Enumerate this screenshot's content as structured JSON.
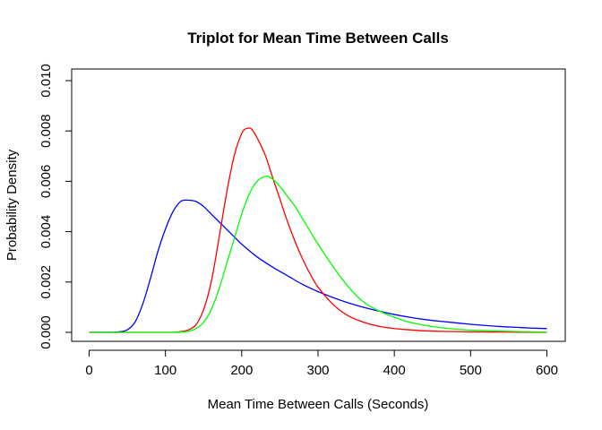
{
  "chart_data": {
    "type": "line",
    "title": "Triplot for Mean Time Between Calls",
    "xlabel": "Mean Time Between Calls (Seconds)",
    "ylabel": "Probability Density",
    "xlim": [
      0,
      600
    ],
    "ylim": [
      0,
      0.01
    ],
    "x_ticks": [
      0,
      100,
      200,
      300,
      400,
      500,
      600
    ],
    "x_tick_labels": [
      "0",
      "100",
      "200",
      "300",
      "400",
      "500",
      "600"
    ],
    "y_ticks": [
      0,
      0.002,
      0.004,
      0.006,
      0.008,
      0.01
    ],
    "y_tick_labels": [
      "0.000",
      "0.002",
      "0.004",
      "0.006",
      "0.008",
      "0.010"
    ],
    "grid": false,
    "legend": "none",
    "series": [
      {
        "color": "#0000ff",
        "x": [
          0,
          30,
          40,
          50,
          60,
          70,
          80,
          90,
          100,
          110,
          120,
          130,
          140,
          150,
          160,
          170,
          180,
          190,
          200,
          220,
          240,
          260,
          280,
          300,
          320,
          340,
          360,
          380,
          400,
          420,
          440,
          460,
          480,
          500,
          520,
          540,
          560,
          580,
          600
        ],
        "y": [
          0,
          0,
          2e-05,
          0.0001,
          0.0004,
          0.0011,
          0.0021,
          0.0032,
          0.0041,
          0.0048,
          0.0052,
          0.00525,
          0.0052,
          0.005,
          0.0047,
          0.0044,
          0.0041,
          0.0038,
          0.0035,
          0.003,
          0.0026,
          0.00225,
          0.0019,
          0.00162,
          0.00138,
          0.00117,
          0.00099,
          0.00084,
          0.00071,
          0.0006,
          0.00051,
          0.00044,
          0.00038,
          0.00032,
          0.00027,
          0.00023,
          0.0002,
          0.00017,
          0.00015
        ]
      },
      {
        "color": "#ff0000",
        "x": [
          0,
          100,
          120,
          130,
          140,
          150,
          160,
          170,
          180,
          190,
          200,
          207,
          215,
          230,
          240,
          250,
          260,
          270,
          280,
          290,
          300,
          320,
          340,
          360,
          380,
          400,
          420,
          440,
          460,
          480,
          500,
          550,
          600
        ],
        "y": [
          0,
          0,
          3e-05,
          0.0001,
          0.0003,
          0.0009,
          0.002,
          0.0037,
          0.0055,
          0.007,
          0.0079,
          0.0081,
          0.008,
          0.0071,
          0.0062,
          0.0053,
          0.0044,
          0.0036,
          0.0029,
          0.0023,
          0.0018,
          0.0011,
          0.00065,
          0.0004,
          0.00024,
          0.00015,
          0.0001,
          6e-05,
          4e-05,
          3e-05,
          2e-05,
          1e-05,
          0
        ]
      },
      {
        "color": "#00ff00",
        "x": [
          0,
          110,
          130,
          140,
          150,
          160,
          170,
          180,
          190,
          200,
          210,
          220,
          232,
          240,
          250,
          260,
          270,
          280,
          290,
          300,
          320,
          340,
          360,
          380,
          400,
          420,
          440,
          460,
          480,
          500,
          550,
          600
        ],
        "y": [
          0,
          0,
          5e-05,
          0.00015,
          0.0004,
          0.0009,
          0.0017,
          0.0027,
          0.0037,
          0.0047,
          0.0055,
          0.006,
          0.0062,
          0.0061,
          0.0058,
          0.0054,
          0.005,
          0.0045,
          0.004,
          0.0035,
          0.0026,
          0.0018,
          0.0012,
          0.00085,
          0.0006,
          0.0004,
          0.00028,
          0.00019,
          0.00013,
          9e-05,
          4e-05,
          1e-05
        ]
      }
    ]
  }
}
